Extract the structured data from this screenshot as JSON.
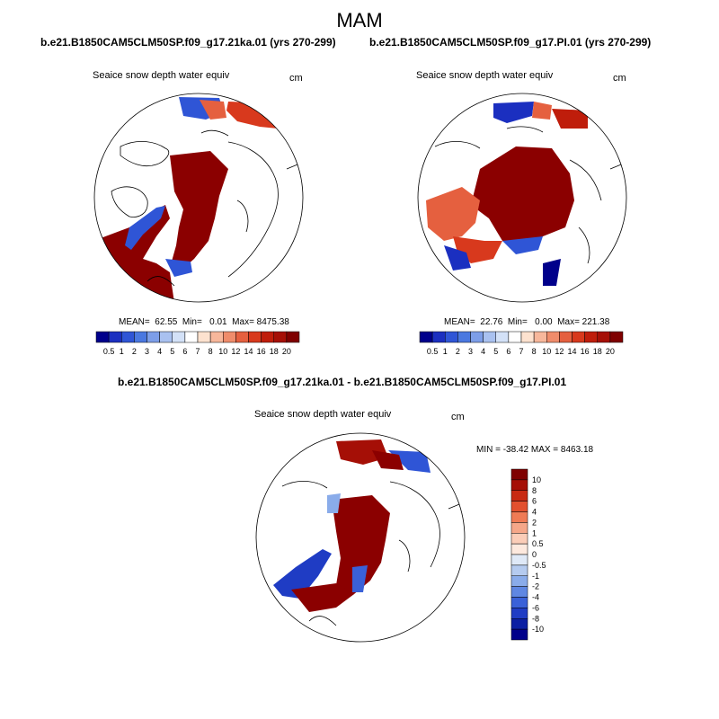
{
  "season": "MAM",
  "panels": [
    {
      "case_title": "b.e21.B1850CAM5CLM50SP.f09_g17.21ka.01 (yrs 270-299)",
      "variable": "Seaice snow depth water equiv",
      "units": "cm",
      "stats": "MEAN=  62.55  Min=   0.01  Max= 8475.38"
    },
    {
      "case_title": "b.e21.B1850CAM5CLM50SP.f09_g17.PI.01 (yrs 270-299)",
      "variable": "Seaice snow depth water equiv",
      "units": "cm",
      "stats": "MEAN=  22.76  Min=   0.00  Max= 221.38"
    }
  ],
  "abs_colorbar": {
    "labels": [
      "0.5",
      "1",
      "2",
      "3",
      "4",
      "5",
      "6",
      "7",
      "8",
      "10",
      "12",
      "14",
      "16",
      "18",
      "20"
    ],
    "colors": [
      "#00008b",
      "#1b2fc0",
      "#2f55d6",
      "#4a78e0",
      "#7d9ee8",
      "#a9c1f0",
      "#d3e1f7",
      "#ffffff",
      "#fde2cf",
      "#f7b79b",
      "#ef8c6b",
      "#e5603f",
      "#d8391d",
      "#bf1d0b",
      "#a50f06",
      "#7f0000"
    ]
  },
  "diff_panel": {
    "title": "b.e21.B1850CAM5CLM50SP.f09_g17.21ka.01 - b.e21.B1850CAM5CLM50SP.f09_g17.PI.01",
    "variable": "Seaice snow depth water equiv",
    "units": "cm",
    "minmax": "MIN = -38.42 MAX = 8463.18"
  },
  "diff_colorbar": {
    "labels": [
      "10",
      "8",
      "6",
      "4",
      "2",
      "1",
      "0.5",
      "0",
      "-0.5",
      "-1",
      "-2",
      "-4",
      "-6",
      "-8",
      "-10"
    ],
    "colors": [
      "#7f0000",
      "#a50f06",
      "#c82a12",
      "#e2502e",
      "#ef7b55",
      "#f5a789",
      "#fbcdb8",
      "#fde9de",
      "#dfe9f7",
      "#b5cbef",
      "#8aacea",
      "#5f87e2",
      "#3a61d8",
      "#1f3cc4",
      "#0b1fa3",
      "#00008b"
    ]
  }
}
